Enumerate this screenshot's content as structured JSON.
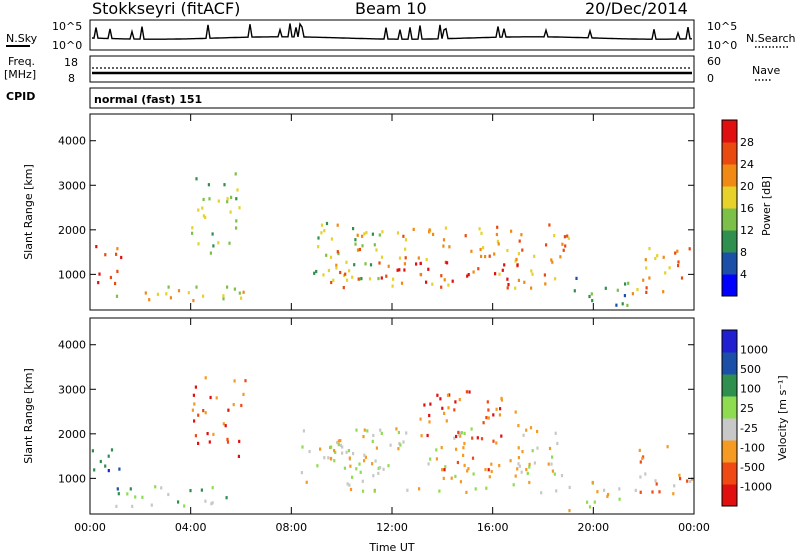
{
  "header": {
    "title": "Stokkseyri (fitACF)",
    "beam": "Beam 10",
    "date": "20/Dec/2014"
  },
  "noise_panel": {
    "left_label": "N.Sky",
    "right_label": "N.Search",
    "left_top": "10^5",
    "left_bottom": "10^0",
    "right_top": "10^5",
    "right_bottom": "10^0"
  },
  "freq_panel": {
    "left_label_top": "Freq.",
    "left_label_unit": "[MHz]",
    "left_top": "18",
    "left_bottom": "8",
    "right_label": "Nave",
    "right_top": "60",
    "right_bottom": "0"
  },
  "cpid": {
    "label": "CPID",
    "value": "normal (fast) 151"
  },
  "colors": {
    "power_scale": [
      "#0000ff",
      "#1c4fa8",
      "#2f8f4f",
      "#7cc04a",
      "#e6d22a",
      "#f08a14",
      "#e84a10",
      "#e01010"
    ],
    "velocity_scale": [
      "#e01010",
      "#f04a14",
      "#f59a22",
      "#c8c8c8",
      "#8fdc50",
      "#2f8f4f",
      "#1c4fa8",
      "#2020d0"
    ]
  },
  "chart_data": [
    {
      "type": "heatmap",
      "panel": "power",
      "ylabel": "Slant Range [km]",
      "yticks": [
        "1000",
        "2000",
        "3000",
        "4000"
      ],
      "ylim": [
        200,
        4600
      ],
      "xticks": [
        "00:00",
        "04:00",
        "08:00",
        "12:00",
        "16:00",
        "20:00",
        "00:00"
      ],
      "xlim_hours": [
        0,
        24
      ],
      "colorbar_label": "Power [dB]",
      "colorbar_ticks": [
        "28",
        "24",
        "20",
        "16",
        "12",
        "8",
        "4"
      ],
      "blobs": [
        {
          "h0": 0.0,
          "h1": 1.2,
          "r0": 600,
          "r1": 1800,
          "level": 6
        },
        {
          "h0": 1.0,
          "h1": 6.2,
          "r0": 400,
          "r1": 900,
          "level": 4
        },
        {
          "h0": 4.0,
          "h1": 6.2,
          "r0": 1500,
          "r1": 3300,
          "level": 3
        },
        {
          "h0": 8.2,
          "h1": 11.5,
          "r0": 900,
          "r1": 2200,
          "level": 3
        },
        {
          "h0": 9.5,
          "h1": 19.0,
          "r0": 700,
          "r1": 2200,
          "level": 5
        },
        {
          "h0": 11.5,
          "h1": 17.0,
          "r0": 800,
          "r1": 1300,
          "level": 7
        },
        {
          "h0": 19.0,
          "h1": 21.5,
          "r0": 300,
          "r1": 1000,
          "level": 2
        },
        {
          "h0": 21.5,
          "h1": 24.0,
          "r0": 600,
          "r1": 1800,
          "level": 5
        }
      ]
    },
    {
      "type": "heatmap",
      "panel": "velocity",
      "ylabel": "Slant Range [km]",
      "yticks": [
        "1000",
        "2000",
        "3000",
        "4000"
      ],
      "ylim": [
        200,
        4600
      ],
      "xticks": [
        "00:00",
        "04:00",
        "08:00",
        "12:00",
        "16:00",
        "20:00",
        "00:00"
      ],
      "xlim_hours": [
        0,
        24
      ],
      "xlabel": "Time UT",
      "colorbar_label": "Velocity [m s⁻¹]",
      "colorbar_ticks": [
        "1000",
        "500",
        "100",
        "25",
        "-25",
        "-100",
        "-500",
        "-1000"
      ],
      "blobs": [
        {
          "h0": 0.0,
          "h1": 1.2,
          "r0": 600,
          "r1": 1800,
          "level": 6
        },
        {
          "h0": 1.0,
          "h1": 6.2,
          "r0": 400,
          "r1": 900,
          "level": 4
        },
        {
          "h0": 4.0,
          "h1": 6.2,
          "r0": 1500,
          "r1": 3300,
          "level": 1
        },
        {
          "h0": 8.2,
          "h1": 11.5,
          "r0": 900,
          "r1": 2200,
          "level": 3
        },
        {
          "h0": 9.5,
          "h1": 19.0,
          "r0": 700,
          "r1": 2200,
          "level": 3
        },
        {
          "h0": 13.0,
          "h1": 17.0,
          "r0": 1200,
          "r1": 3000,
          "level": 1
        },
        {
          "h0": 19.0,
          "h1": 21.5,
          "r0": 300,
          "r1": 1000,
          "level": 3
        },
        {
          "h0": 21.5,
          "h1": 24.0,
          "r0": 600,
          "r1": 1800,
          "level": 2
        }
      ]
    }
  ]
}
